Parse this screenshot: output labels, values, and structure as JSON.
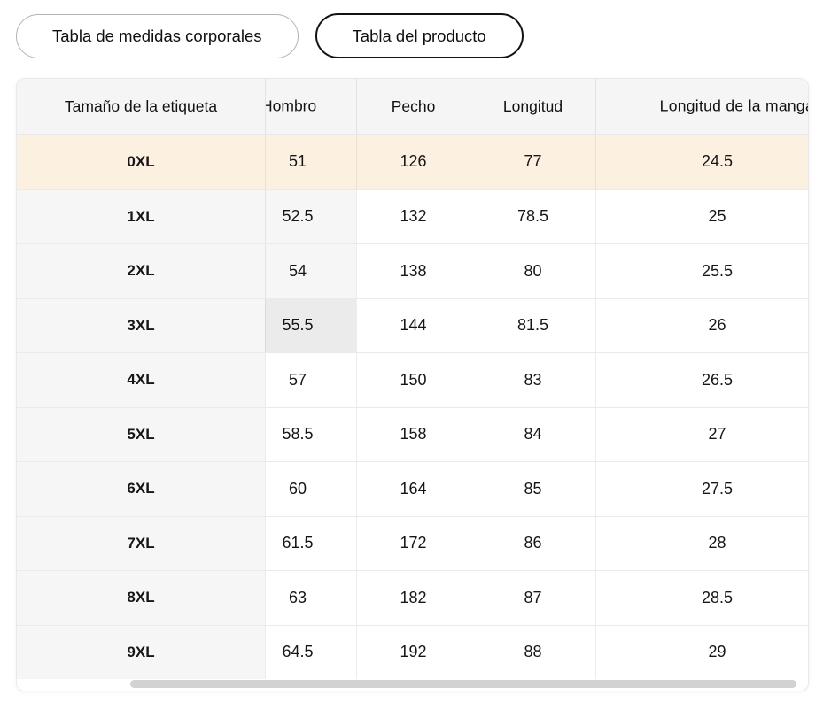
{
  "tabs": [
    {
      "label": "Tabla de medidas corporales",
      "selected": false
    },
    {
      "label": "Tabla del producto",
      "selected": true
    }
  ],
  "table": {
    "columns": [
      "Tamaño de la etiqueta",
      "Hombro",
      "Pecho",
      "Longitud",
      "Longitud de la manga"
    ],
    "rows": [
      {
        "label": "0XL",
        "values": [
          "51",
          "126",
          "77",
          "24.5"
        ],
        "highlighted": true,
        "hombro_state": "none"
      },
      {
        "label": "1XL",
        "values": [
          "52.5",
          "132",
          "78.5",
          "25"
        ],
        "highlighted": false,
        "hombro_state": "shaded"
      },
      {
        "label": "2XL",
        "values": [
          "54",
          "138",
          "80",
          "25.5"
        ],
        "highlighted": false,
        "hombro_state": "shaded"
      },
      {
        "label": "3XL",
        "values": [
          "55.5",
          "144",
          "81.5",
          "26"
        ],
        "highlighted": false,
        "hombro_state": "selected"
      },
      {
        "label": "4XL",
        "values": [
          "57",
          "150",
          "83",
          "26.5"
        ],
        "highlighted": false,
        "hombro_state": "none"
      },
      {
        "label": "5XL",
        "values": [
          "58.5",
          "158",
          "84",
          "27"
        ],
        "highlighted": false,
        "hombro_state": "none"
      },
      {
        "label": "6XL",
        "values": [
          "60",
          "164",
          "85",
          "27.5"
        ],
        "highlighted": false,
        "hombro_state": "none"
      },
      {
        "label": "7XL",
        "values": [
          "61.5",
          "172",
          "86",
          "28"
        ],
        "highlighted": false,
        "hombro_state": "none"
      },
      {
        "label": "8XL",
        "values": [
          "63",
          "182",
          "87",
          "28.5"
        ],
        "highlighted": false,
        "hombro_state": "none"
      },
      {
        "label": "9XL",
        "values": [
          "64.5",
          "192",
          "88",
          "29"
        ],
        "highlighted": false,
        "hombro_state": "none"
      }
    ],
    "selected_cell": {
      "row": "3XL",
      "column": "Hombro",
      "value": "55.5"
    }
  },
  "colors": {
    "highlight_row_bg": "#fcf0e1",
    "selected_cell_bg": "#ebebeb",
    "sticky_column_bg": "#f6f6f6",
    "header_bg": "#f5f5f6",
    "tab_selected_border": "#121212",
    "tab_border": "#b3b3b3",
    "scrollbar_thumb": "#d2d2d2"
  }
}
